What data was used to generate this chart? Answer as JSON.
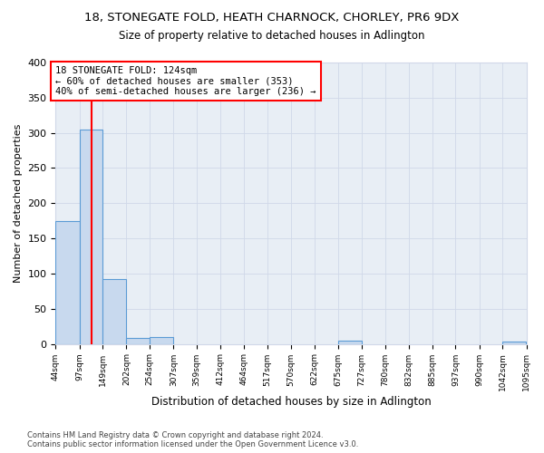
{
  "title1": "18, STONEGATE FOLD, HEATH CHARNOCK, CHORLEY, PR6 9DX",
  "title2": "Size of property relative to detached houses in Adlington",
  "xlabel": "Distribution of detached houses by size in Adlington",
  "ylabel": "Number of detached properties",
  "bin_edges": [
    44,
    97,
    149,
    202,
    254,
    307,
    359,
    412,
    464,
    517,
    570,
    622,
    675,
    727,
    780,
    832,
    885,
    937,
    990,
    1042,
    1095
  ],
  "bin_counts": [
    175,
    305,
    92,
    9,
    10,
    0,
    0,
    0,
    0,
    0,
    0,
    0,
    4,
    0,
    0,
    0,
    0,
    0,
    0,
    3
  ],
  "bar_color": "#c8d9ee",
  "bar_edge_color": "#5b9bd5",
  "subject_value": 124,
  "vline_color": "red",
  "annotation_line1": "18 STONEGATE FOLD: 124sqm",
  "annotation_line2": "← 60% of detached houses are smaller (353)",
  "annotation_line3": "40% of semi-detached houses are larger (236) →",
  "annotation_box_color": "white",
  "annotation_box_edge": "red",
  "ylim": [
    0,
    400
  ],
  "yticks": [
    0,
    50,
    100,
    150,
    200,
    250,
    300,
    350,
    400
  ],
  "footer": "Contains HM Land Registry data © Crown copyright and database right 2024.\nContains public sector information licensed under the Open Government Licence v3.0.",
  "bg_color": "white",
  "grid_color": "#d0d8e8"
}
